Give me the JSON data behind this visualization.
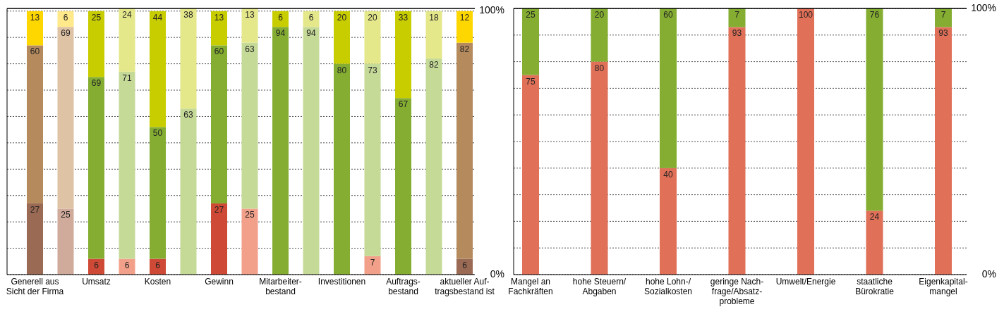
{
  "chart_data": [
    {
      "type": "bar",
      "stacked": true,
      "data_labels": true,
      "grid": "y",
      "categories": [
        "Generell aus\nSicht der Firma",
        null,
        "Umsatz",
        null,
        "Kosten",
        null,
        "Gewinn",
        null,
        "Mitarbeiter-\nbestand",
        null,
        "Investitionen",
        null,
        "Auftrags-\nbestand",
        null,
        "aktueller Auf-\ntragsbestand ist"
      ],
      "ylim": [
        0,
        101
      ],
      "yticks": [
        {
          "value": 0,
          "label": "0%"
        },
        {
          "value": 10,
          "label": null
        },
        {
          "value": 20,
          "label": null
        },
        {
          "value": 30,
          "label": null
        },
        {
          "value": 40,
          "label": null
        },
        {
          "value": 50,
          "label": null
        },
        {
          "value": 60,
          "label": null
        },
        {
          "value": 70,
          "label": null
        },
        {
          "value": 80,
          "label": null
        },
        {
          "value": 90,
          "label": null
        },
        {
          "value": 100,
          "label": "100%"
        }
      ],
      "series": [
        {
          "values": [
            27,
            25,
            6,
            6,
            6,
            null,
            27,
            25,
            null,
            null,
            null,
            7,
            null,
            null,
            6
          ],
          "colors": [
            "#9a6a55",
            "#d0ab9c",
            "#cf4a36",
            "#f2a08a",
            "#cf4a36",
            null,
            "#cf4a36",
            "#f2a08a",
            null,
            null,
            null,
            "#f2a08a",
            null,
            null,
            "#9a6a55"
          ]
        },
        {
          "values": [
            60,
            69,
            69,
            71,
            50,
            63,
            60,
            63,
            94,
            94,
            80,
            73,
            67,
            82,
            82
          ],
          "colors": [
            "#b58b5e",
            "#dfc3a5",
            "#84ad32",
            "#c6da98",
            "#84ad32",
            "#c6da98",
            "#84ad32",
            "#c6da98",
            "#84ad32",
            "#c6da98",
            "#84ad32",
            "#c6da98",
            "#84ad32",
            "#c6da98",
            "#b58b5e"
          ]
        },
        {
          "values": [
            13,
            6,
            25,
            24,
            44,
            38,
            13,
            13,
            6,
            6,
            20,
            20,
            33,
            18,
            12
          ],
          "colors": [
            "#ffd700",
            "#ffe98a",
            "#c8cd00",
            "#e4e78a",
            "#c8cd00",
            "#e4e78a",
            "#c8cd00",
            "#e4e78a",
            "#c8cd00",
            "#e4e78a",
            "#c8cd00",
            "#e4e78a",
            "#c8cd00",
            "#e4e78a",
            "#ffd700"
          ]
        }
      ]
    },
    {
      "type": "bar",
      "stacked": true,
      "data_labels": true,
      "grid": "y",
      "categories": [
        "Mangel an\nFachkräften",
        "hohe Steuern/\nAbgaben",
        "hohe Lohn-/\nSozialkosten",
        "geringe Nach-\nfrage/Absatz-\nprobleme",
        "Umwelt/Energie",
        "staatliche\nBürokratie",
        "Eigenkapital-\nmangel"
      ],
      "ylim": [
        0,
        100
      ],
      "yticks": [
        {
          "value": 0,
          "label": "0%"
        },
        {
          "value": 10,
          "label": null
        },
        {
          "value": 20,
          "label": null
        },
        {
          "value": 30,
          "label": null
        },
        {
          "value": 40,
          "label": null
        },
        {
          "value": 50,
          "label": null
        },
        {
          "value": 60,
          "label": null
        },
        {
          "value": 70,
          "label": null
        },
        {
          "value": 80,
          "label": null
        },
        {
          "value": 90,
          "label": null
        },
        {
          "value": 100,
          "label": "100%"
        }
      ],
      "series": [
        {
          "color": "#e07058",
          "values": [
            75,
            80,
            40,
            93,
            100,
            24,
            93
          ]
        },
        {
          "color": "#84ad32",
          "values": [
            25,
            20,
            60,
            7,
            null,
            76,
            7
          ]
        }
      ]
    }
  ]
}
